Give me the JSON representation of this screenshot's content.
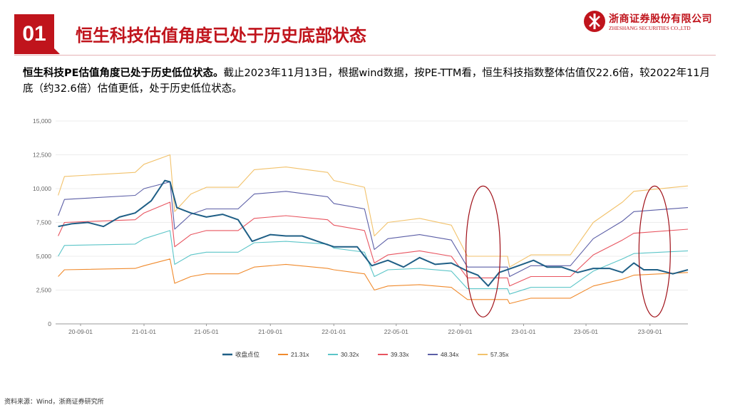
{
  "header": {
    "section_number": "01",
    "title": "恒生科技估值角度已处于历史底部状态"
  },
  "logo": {
    "name_cn": "浙商证券股份有限公司",
    "name_en": "ZHESHANG SECURITIES CO.,LTD"
  },
  "description": {
    "bold_lead": "恒生科技PE估值角度已处于历史低位状态。",
    "text": "截止2023年11月13日，根据wind数据，按PE-TTM看，恒生科技指数整体估值仅22.6倍，较2022年11月底（约32.6倍）估值更低，处于历史低位状态。"
  },
  "source": "资料来源：Wind，浙商证券研究所",
  "chart_data": {
    "type": "line",
    "title": "",
    "xlabel": "",
    "ylabel": "",
    "ylim": [
      0,
      15000
    ],
    "y_ticks": [
      "0",
      "2,500",
      "5,000",
      "7,500",
      "10,000",
      "12,500",
      "15,000"
    ],
    "x_ticks": [
      "20-09-01",
      "21-01-01",
      "21-05-01",
      "21-09-01",
      "22-01-01",
      "22-05-01",
      "22-09-01",
      "23-01-01",
      "23-05-01",
      "23-09-01"
    ],
    "x_range": [
      "2020-07-15",
      "2023-11-13"
    ],
    "grid": "horizontal",
    "legend_position": "bottom",
    "series": [
      {
        "name": "收盘点位",
        "color": "#1f5f86",
        "points": [
          [
            "2020-07-20",
            7200
          ],
          [
            "2020-08-15",
            7400
          ],
          [
            "2020-09-15",
            7500
          ],
          [
            "2020-10-15",
            7200
          ],
          [
            "2020-11-15",
            7900
          ],
          [
            "2020-12-15",
            8200
          ],
          [
            "2021-01-15",
            9100
          ],
          [
            "2021-02-10",
            10600
          ],
          [
            "2021-02-20",
            10500
          ],
          [
            "2021-03-05",
            8600
          ],
          [
            "2021-04-01",
            8200
          ],
          [
            "2021-05-01",
            7900
          ],
          [
            "2021-06-01",
            8100
          ],
          [
            "2021-07-01",
            7700
          ],
          [
            "2021-07-28",
            6100
          ],
          [
            "2021-09-01",
            6600
          ],
          [
            "2021-10-01",
            6500
          ],
          [
            "2021-11-01",
            6500
          ],
          [
            "2021-12-01",
            6100
          ],
          [
            "2022-01-01",
            5700
          ],
          [
            "2022-02-15",
            5700
          ],
          [
            "2022-03-15",
            4300
          ],
          [
            "2022-04-15",
            4700
          ],
          [
            "2022-05-15",
            4200
          ],
          [
            "2022-06-15",
            4900
          ],
          [
            "2022-07-15",
            4400
          ],
          [
            "2022-08-15",
            4500
          ],
          [
            "2022-09-15",
            3900
          ],
          [
            "2022-10-05",
            3600
          ],
          [
            "2022-10-25",
            2800
          ],
          [
            "2022-11-15",
            3800
          ],
          [
            "2022-12-15",
            4200
          ],
          [
            "2023-01-20",
            4700
          ],
          [
            "2023-02-15",
            4200
          ],
          [
            "2023-03-15",
            4200
          ],
          [
            "2023-04-15",
            3800
          ],
          [
            "2023-05-15",
            4100
          ],
          [
            "2023-06-15",
            4100
          ],
          [
            "2023-07-10",
            3800
          ],
          [
            "2023-08-01",
            4500
          ],
          [
            "2023-08-20",
            4000
          ],
          [
            "2023-09-15",
            4000
          ],
          [
            "2023-10-15",
            3700
          ],
          [
            "2023-11-13",
            4000
          ]
        ]
      },
      {
        "name": "21.31x",
        "color": "#f08a2c",
        "points": [
          [
            "2020-07-20",
            3500
          ],
          [
            "2020-08-01",
            4000
          ],
          [
            "2020-12-15",
            4100
          ],
          [
            "2021-01-01",
            4300
          ],
          [
            "2021-02-20",
            4800
          ],
          [
            "2021-03-01",
            3000
          ],
          [
            "2021-04-01",
            3500
          ],
          [
            "2021-05-01",
            3700
          ],
          [
            "2021-07-01",
            3700
          ],
          [
            "2021-08-01",
            4200
          ],
          [
            "2021-10-01",
            4400
          ],
          [
            "2021-12-20",
            4100
          ],
          [
            "2022-01-01",
            4000
          ],
          [
            "2022-03-01",
            3700
          ],
          [
            "2022-03-20",
            2500
          ],
          [
            "2022-04-15",
            2800
          ],
          [
            "2022-06-15",
            2900
          ],
          [
            "2022-08-15",
            2700
          ],
          [
            "2022-09-15",
            1800
          ],
          [
            "2022-12-01",
            1800
          ],
          [
            "2022-12-05",
            1500
          ],
          [
            "2023-01-15",
            1900
          ],
          [
            "2023-02-15",
            1900
          ],
          [
            "2023-04-01",
            1900
          ],
          [
            "2023-05-15",
            2800
          ],
          [
            "2023-07-10",
            3300
          ],
          [
            "2023-08-01",
            3600
          ],
          [
            "2023-11-13",
            3800
          ]
        ]
      },
      {
        "name": "30.32x",
        "color": "#5bc5c8",
        "points": [
          [
            "2020-07-20",
            5000
          ],
          [
            "2020-08-01",
            5800
          ],
          [
            "2020-12-15",
            5900
          ],
          [
            "2021-01-01",
            6300
          ],
          [
            "2021-02-20",
            6900
          ],
          [
            "2021-03-01",
            4400
          ],
          [
            "2021-04-01",
            5100
          ],
          [
            "2021-05-01",
            5300
          ],
          [
            "2021-07-01",
            5300
          ],
          [
            "2021-08-01",
            6000
          ],
          [
            "2021-10-01",
            6100
          ],
          [
            "2021-12-20",
            5900
          ],
          [
            "2022-01-01",
            5600
          ],
          [
            "2022-03-01",
            5300
          ],
          [
            "2022-03-20",
            3500
          ],
          [
            "2022-04-15",
            4000
          ],
          [
            "2022-06-15",
            4100
          ],
          [
            "2022-08-15",
            3900
          ],
          [
            "2022-09-15",
            2600
          ],
          [
            "2022-12-01",
            2600
          ],
          [
            "2022-12-05",
            2200
          ],
          [
            "2023-01-15",
            2700
          ],
          [
            "2023-02-15",
            2700
          ],
          [
            "2023-04-01",
            2700
          ],
          [
            "2023-05-15",
            3900
          ],
          [
            "2023-07-10",
            4800
          ],
          [
            "2023-08-01",
            5200
          ],
          [
            "2023-11-13",
            5400
          ]
        ]
      },
      {
        "name": "39.33x",
        "color": "#e8545f",
        "points": [
          [
            "2020-07-20",
            6500
          ],
          [
            "2020-08-01",
            7500
          ],
          [
            "2020-12-15",
            7700
          ],
          [
            "2021-01-01",
            8200
          ],
          [
            "2021-02-20",
            9000
          ],
          [
            "2021-03-01",
            5700
          ],
          [
            "2021-04-01",
            6600
          ],
          [
            "2021-05-01",
            6900
          ],
          [
            "2021-07-01",
            6900
          ],
          [
            "2021-08-01",
            7800
          ],
          [
            "2021-10-01",
            8000
          ],
          [
            "2021-12-20",
            7700
          ],
          [
            "2022-01-01",
            7300
          ],
          [
            "2022-03-01",
            6900
          ],
          [
            "2022-03-20",
            4500
          ],
          [
            "2022-04-15",
            5100
          ],
          [
            "2022-06-15",
            5400
          ],
          [
            "2022-08-15",
            5000
          ],
          [
            "2022-09-15",
            3400
          ],
          [
            "2022-12-01",
            3400
          ],
          [
            "2022-12-05",
            2800
          ],
          [
            "2023-01-15",
            3500
          ],
          [
            "2023-02-15",
            3500
          ],
          [
            "2023-04-01",
            3500
          ],
          [
            "2023-05-15",
            5100
          ],
          [
            "2023-07-10",
            6200
          ],
          [
            "2023-08-01",
            6700
          ],
          [
            "2023-11-13",
            7000
          ]
        ]
      },
      {
        "name": "48.34x",
        "color": "#5b5ea6",
        "points": [
          [
            "2020-07-20",
            8000
          ],
          [
            "2020-08-01",
            9200
          ],
          [
            "2020-12-15",
            9500
          ],
          [
            "2021-01-01",
            10000
          ],
          [
            "2021-02-20",
            10500
          ],
          [
            "2021-03-01",
            7000
          ],
          [
            "2021-04-01",
            8100
          ],
          [
            "2021-05-01",
            8500
          ],
          [
            "2021-07-01",
            8500
          ],
          [
            "2021-08-01",
            9600
          ],
          [
            "2021-10-01",
            9800
          ],
          [
            "2021-12-20",
            9400
          ],
          [
            "2022-01-01",
            8900
          ],
          [
            "2022-03-01",
            8500
          ],
          [
            "2022-03-20",
            5500
          ],
          [
            "2022-04-15",
            6300
          ],
          [
            "2022-06-15",
            6600
          ],
          [
            "2022-08-15",
            6200
          ],
          [
            "2022-09-15",
            4200
          ],
          [
            "2022-12-01",
            4200
          ],
          [
            "2022-12-05",
            3500
          ],
          [
            "2023-01-15",
            4300
          ],
          [
            "2023-02-15",
            4300
          ],
          [
            "2023-04-01",
            4300
          ],
          [
            "2023-05-15",
            6300
          ],
          [
            "2023-07-10",
            7600
          ],
          [
            "2023-08-01",
            8300
          ],
          [
            "2023-11-13",
            8600
          ]
        ]
      },
      {
        "name": "57.35x",
        "color": "#f2c26b",
        "points": [
          [
            "2020-07-20",
            9500
          ],
          [
            "2020-08-01",
            10900
          ],
          [
            "2020-12-15",
            11200
          ],
          [
            "2021-01-01",
            11800
          ],
          [
            "2021-02-20",
            12500
          ],
          [
            "2021-03-01",
            8300
          ],
          [
            "2021-04-01",
            9600
          ],
          [
            "2021-05-01",
            10100
          ],
          [
            "2021-07-01",
            10100
          ],
          [
            "2021-08-01",
            11400
          ],
          [
            "2021-10-01",
            11600
          ],
          [
            "2021-12-20",
            11200
          ],
          [
            "2022-01-01",
            10600
          ],
          [
            "2022-03-01",
            10100
          ],
          [
            "2022-03-20",
            6500
          ],
          [
            "2022-04-15",
            7500
          ],
          [
            "2022-06-15",
            7800
          ],
          [
            "2022-08-15",
            7300
          ],
          [
            "2022-09-15",
            5000
          ],
          [
            "2022-12-01",
            5000
          ],
          [
            "2022-12-05",
            4200
          ],
          [
            "2023-01-15",
            5100
          ],
          [
            "2023-02-15",
            5100
          ],
          [
            "2023-04-01",
            5100
          ],
          [
            "2023-05-15",
            7500
          ],
          [
            "2023-07-10",
            9000
          ],
          [
            "2023-08-01",
            9800
          ],
          [
            "2023-11-13",
            10200
          ]
        ]
      }
    ]
  }
}
